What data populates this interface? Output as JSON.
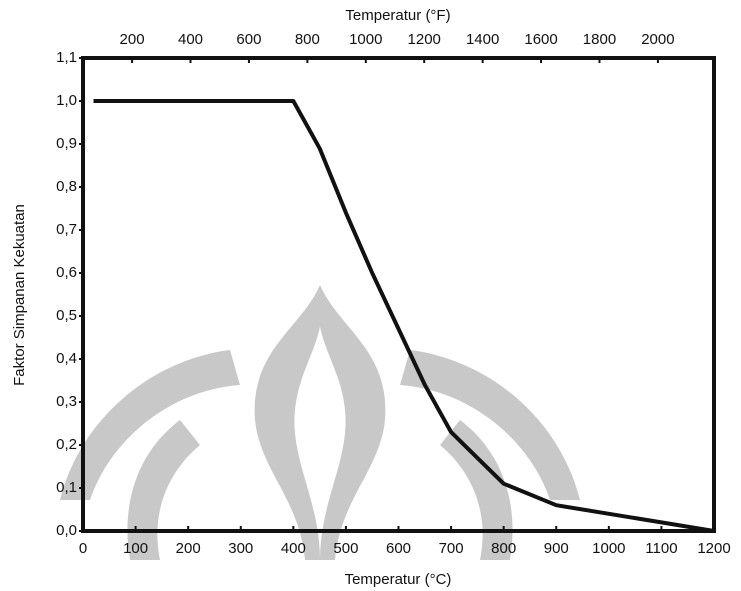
{
  "chart_data": {
    "type": "line",
    "x_label": "Temperatur (°C)",
    "x2_label": "Temperatur (°F)",
    "y_label": "Faktor Simpanan Kekuatan",
    "x": [
      20,
      400,
      450,
      500,
      550,
      600,
      650,
      700,
      750,
      800,
      900,
      1000,
      1100,
      1200
    ],
    "series": [
      {
        "name": "Faktor Simpanan Kekuatan",
        "color": "#111111",
        "values": [
          1.0,
          1.0,
          0.89,
          0.74,
          0.6,
          0.47,
          0.34,
          0.23,
          0.17,
          0.11,
          0.06,
          0.04,
          0.02,
          0.0
        ]
      }
    ],
    "xlim": [
      0,
      1200
    ],
    "xticks": [
      0,
      100,
      200,
      300,
      400,
      500,
      600,
      700,
      800,
      900,
      1000,
      1100,
      1200
    ],
    "x2lim": [
      32,
      2192
    ],
    "x2ticks": [
      200,
      400,
      600,
      800,
      1000,
      1200,
      1400,
      1600,
      1800,
      2000
    ],
    "ylim": [
      0,
      1.1
    ],
    "yticks": [
      {
        "value": 0,
        "label": "0,0"
      },
      {
        "value": 0.1,
        "label": "0,1"
      },
      {
        "value": 0.2,
        "label": "0,2"
      },
      {
        "value": 0.3,
        "label": "0,3"
      },
      {
        "value": 0.4,
        "label": "0,4"
      },
      {
        "value": 0.5,
        "label": "0,5"
      },
      {
        "value": 0.6,
        "label": "0,6"
      },
      {
        "value": 0.7,
        "label": "0,7"
      },
      {
        "value": 0.8,
        "label": "0,8"
      },
      {
        "value": 0.9,
        "label": "0,9"
      },
      {
        "value": 1.0,
        "label": "1,0"
      },
      {
        "value": 1.1,
        "label": "1,1"
      }
    ]
  }
}
